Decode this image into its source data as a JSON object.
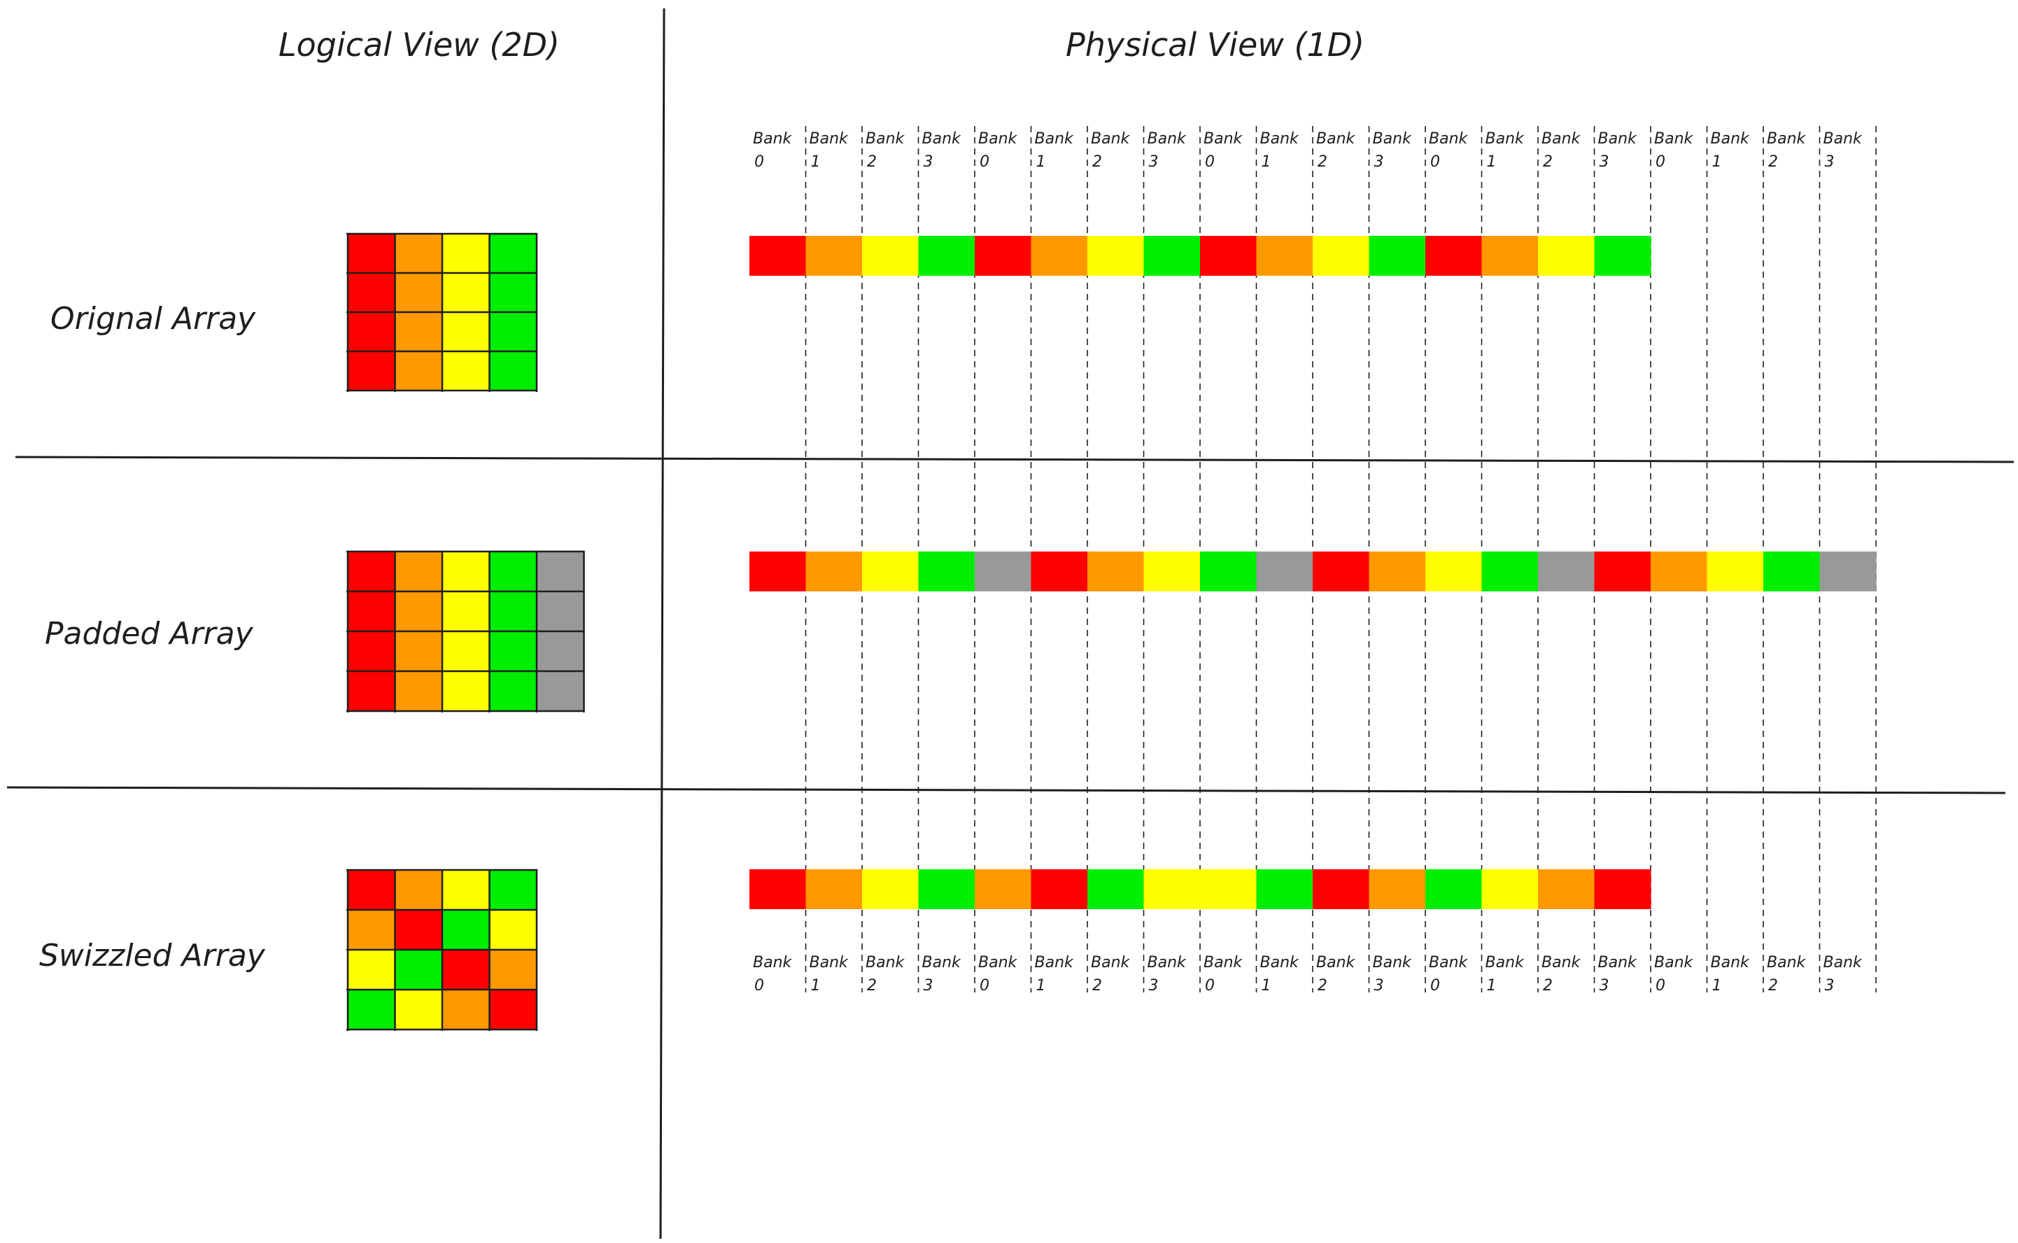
{
  "headers": {
    "logical": "Logical View (2D)",
    "physical": "Physical View (1D)"
  },
  "colors": {
    "R": "#ff0000",
    "O": "#ff9900",
    "Y": "#ffff00",
    "G": "#00ee00",
    "X": "#999999"
  },
  "bank_labels": {
    "word": "Bank",
    "numbers": [
      "0",
      "1",
      "2",
      "3",
      "0",
      "1",
      "2",
      "3",
      "0",
      "1",
      "2",
      "3",
      "0",
      "1",
      "2",
      "3",
      "0",
      "1",
      "2",
      "3"
    ]
  },
  "rows": [
    {
      "label": "Orignal Array",
      "grid": [
        [
          "R",
          "O",
          "Y",
          "G"
        ],
        [
          "R",
          "O",
          "Y",
          "G"
        ],
        [
          "R",
          "O",
          "Y",
          "G"
        ],
        [
          "R",
          "O",
          "Y",
          "G"
        ]
      ],
      "strip": [
        "R",
        "O",
        "Y",
        "G",
        "R",
        "O",
        "Y",
        "G",
        "R",
        "O",
        "Y",
        "G",
        "R",
        "O",
        "Y",
        "G"
      ]
    },
    {
      "label": "Padded Array",
      "grid": [
        [
          "R",
          "O",
          "Y",
          "G",
          "X"
        ],
        [
          "R",
          "O",
          "Y",
          "G",
          "X"
        ],
        [
          "R",
          "O",
          "Y",
          "G",
          "X"
        ],
        [
          "R",
          "O",
          "Y",
          "G",
          "X"
        ]
      ],
      "strip": [
        "R",
        "O",
        "Y",
        "G",
        "X",
        "R",
        "O",
        "Y",
        "G",
        "X",
        "R",
        "O",
        "Y",
        "G",
        "X",
        "R",
        "O",
        "Y",
        "G",
        "X"
      ]
    },
    {
      "label": "Swizzled Array",
      "grid": [
        [
          "R",
          "O",
          "Y",
          "G"
        ],
        [
          "O",
          "R",
          "G",
          "Y"
        ],
        [
          "Y",
          "G",
          "R",
          "O"
        ],
        [
          "G",
          "Y",
          "O",
          "R"
        ]
      ],
      "strip": [
        "R",
        "O",
        "Y",
        "G",
        "O",
        "R",
        "G",
        "Y",
        "Y",
        "G",
        "R",
        "O",
        "G",
        "Y",
        "O",
        "R"
      ]
    }
  ]
}
